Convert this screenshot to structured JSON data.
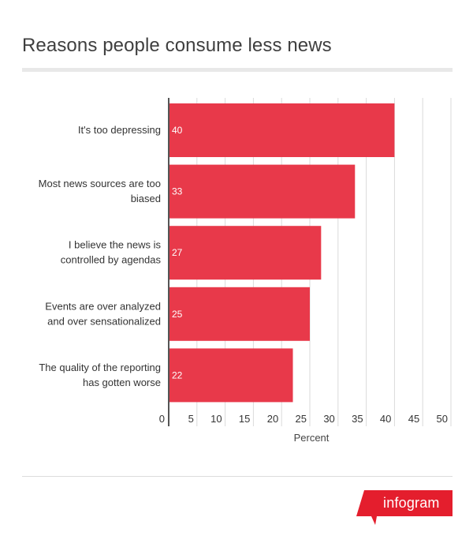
{
  "chart_data": {
    "type": "bar",
    "orientation": "horizontal",
    "title": "Reasons people consume less news",
    "xlabel": "Percent",
    "ylabel": "",
    "categories": [
      [
        "It's too depressing"
      ],
      [
        "Most news sources are too",
        "biased"
      ],
      [
        "I believe the news is",
        "controlled by agendas"
      ],
      [
        "Events are over analyzed",
        "and over sensationalized"
      ],
      [
        "The quality of the reporting",
        "has gotten worse"
      ]
    ],
    "values": [
      40,
      33,
      27,
      25,
      22
    ],
    "xlim": [
      0,
      50
    ],
    "xticks": [
      0,
      5,
      10,
      15,
      20,
      25,
      30,
      35,
      40,
      45,
      50
    ],
    "grid": true,
    "legend": "none",
    "bar_color": "#e8394a"
  },
  "branding": {
    "logo_text": "infogram",
    "logo_color": "#e41e2d"
  }
}
